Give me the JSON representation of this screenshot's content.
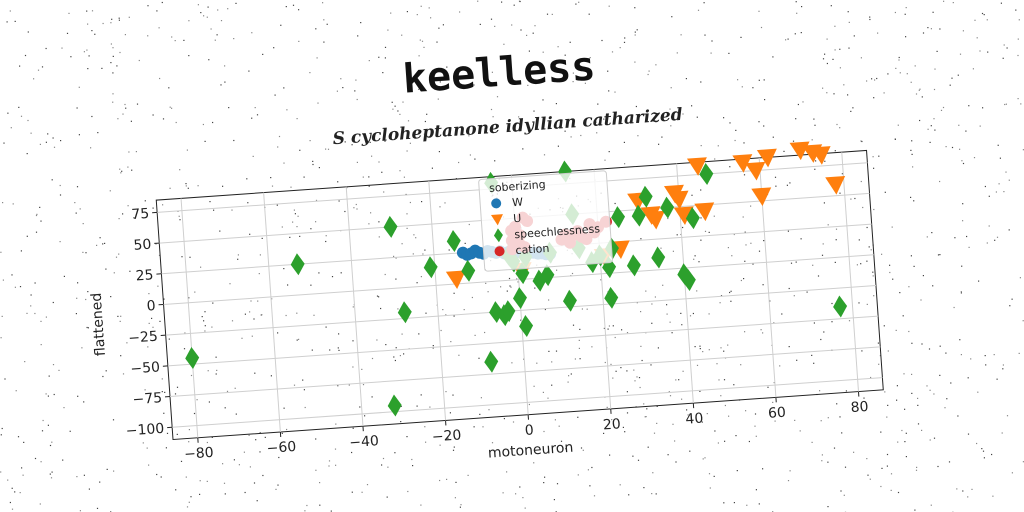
{
  "chart_data": {
    "type": "scatter",
    "title": "keelless",
    "subtitle": "S cycloheptanone idyllian catharized",
    "xlabel": "motoneuron",
    "ylabel": "flattened",
    "xlim": [
      -86,
      86
    ],
    "ylim": [
      -110,
      85
    ],
    "xticks": [
      -80,
      -60,
      -40,
      -20,
      0,
      20,
      40,
      60,
      80
    ],
    "yticks": [
      -100,
      -75,
      -50,
      -25,
      0,
      25,
      50,
      75
    ],
    "xtick_labels": [
      "−80",
      "−60",
      "−40",
      "−20",
      "0",
      "20",
      "40",
      "60",
      "80"
    ],
    "ytick_labels": [
      "−100",
      "−75",
      "−50",
      "−25",
      "0",
      "25",
      "50",
      "75"
    ],
    "grid": true,
    "legend": {
      "title": "soberizing",
      "placement": "top-center"
    },
    "series": [
      {
        "name": "W",
        "marker": "circle",
        "color": "#1f77b4",
        "points": [
          [
            -13,
            25
          ],
          [
            -12,
            23
          ],
          [
            -11,
            24
          ],
          [
            -10,
            26
          ],
          [
            -9,
            24
          ],
          [
            -8,
            23
          ],
          [
            -7,
            25
          ],
          [
            -6,
            24
          ],
          [
            -5,
            23
          ],
          [
            -4,
            24
          ],
          [
            -3,
            22
          ],
          [
            -2,
            23
          ],
          [
            -1,
            23
          ],
          [
            0,
            22
          ],
          [
            1,
            22
          ],
          [
            2,
            22
          ],
          [
            3,
            21
          ],
          [
            4,
            21
          ],
          [
            5,
            20
          ],
          [
            6,
            20
          ],
          [
            7,
            19
          ],
          [
            8,
            19
          ]
        ]
      },
      {
        "name": "U",
        "marker": "triangle-down",
        "color": "#ff7f0e",
        "points": [
          [
            -15,
            4
          ],
          [
            1,
            7
          ],
          [
            21,
            14
          ],
          [
            25,
            19
          ],
          [
            30,
            57
          ],
          [
            33,
            45
          ],
          [
            34,
            41
          ],
          [
            39,
            61
          ],
          [
            40,
            56
          ],
          [
            41,
            43
          ],
          [
            46,
            45
          ],
          [
            45,
            82
          ],
          [
            56,
            82
          ],
          [
            59,
            75
          ],
          [
            62,
            85
          ],
          [
            60,
            54
          ],
          [
            66,
            96
          ],
          [
            70,
            89
          ],
          [
            73,
            86
          ],
          [
            75,
            84
          ],
          [
            78,
            59
          ]
        ]
      },
      {
        "name": "speechlessness",
        "marker": "diamond",
        "color": "#2ca02c",
        "points": [
          [
            -80,
            -45
          ],
          [
            -53,
            25
          ],
          [
            -32,
            -95
          ],
          [
            -30,
            50
          ],
          [
            -28,
            -20
          ],
          [
            -21,
            15
          ],
          [
            -15,
            35
          ],
          [
            -12,
            10
          ],
          [
            -8,
            -65
          ],
          [
            -6,
            -25
          ],
          [
            -5,
            80
          ],
          [
            -4,
            -28
          ],
          [
            -3,
            -25
          ],
          [
            -2,
            20
          ],
          [
            -1,
            15
          ],
          [
            0,
            -15
          ],
          [
            1,
            -38
          ],
          [
            1,
            5
          ],
          [
            2,
            18
          ],
          [
            5,
            -2
          ],
          [
            7,
            2
          ],
          [
            8,
            20
          ],
          [
            12,
            -20
          ],
          [
            13,
            85
          ],
          [
            14,
            50
          ],
          [
            15,
            22
          ],
          [
            18,
            10
          ],
          [
            20,
            15
          ],
          [
            22,
            -20
          ],
          [
            22,
            5
          ],
          [
            23,
            20
          ],
          [
            25,
            45
          ],
          [
            28,
            5
          ],
          [
            30,
            45
          ],
          [
            32,
            60
          ],
          [
            34,
            10
          ],
          [
            37,
            50
          ],
          [
            40,
            -5
          ],
          [
            41,
            -10
          ],
          [
            43,
            40
          ],
          [
            47,
            75
          ],
          [
            77,
            -40
          ]
        ]
      },
      {
        "name": "cation",
        "marker": "circle",
        "color": "#d62728",
        "points": [
          [
            -1,
            40
          ],
          [
            0,
            43
          ],
          [
            1,
            36
          ],
          [
            2,
            50
          ],
          [
            3,
            47
          ],
          [
            -1,
            32
          ],
          [
            0,
            30
          ],
          [
            1,
            28
          ],
          [
            2,
            26
          ],
          [
            -1,
            25
          ],
          [
            11,
            30
          ],
          [
            12,
            34
          ],
          [
            13,
            27
          ],
          [
            14,
            33
          ],
          [
            15,
            36
          ],
          [
            16,
            31
          ],
          [
            17,
            29
          ],
          [
            18,
            41
          ],
          [
            19,
            34
          ],
          [
            20,
            38
          ],
          [
            22,
            42
          ]
        ]
      }
    ]
  }
}
